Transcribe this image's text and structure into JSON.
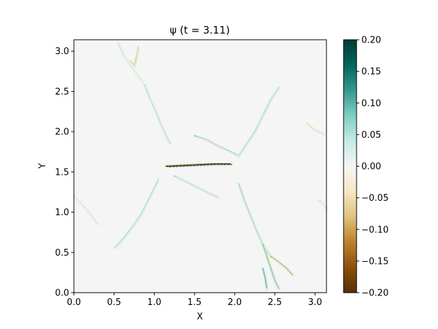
{
  "chart_data": {
    "type": "heatmap",
    "title": "ψ (t = 3.11)",
    "xlabel": "X",
    "ylabel": "Y",
    "xlim": [
      0.0,
      3.1416
    ],
    "ylim": [
      0.0,
      3.1416
    ],
    "x_ticks": [
      0.0,
      0.5,
      1.0,
      1.5,
      2.0,
      2.5,
      3.0
    ],
    "x_tick_labels": [
      "0.0",
      "0.5",
      "1.0",
      "1.5",
      "2.0",
      "2.5",
      "3.0"
    ],
    "y_ticks": [
      0.0,
      0.5,
      1.0,
      1.5,
      2.0,
      2.5,
      3.0
    ],
    "y_tick_labels": [
      "0.0",
      "0.5",
      "1.0",
      "1.5",
      "2.0",
      "2.5",
      "3.0"
    ],
    "colorbar": {
      "colormap": "BrBG",
      "vmin": -0.2,
      "vmax": 0.2,
      "ticks": [
        0.2,
        0.15,
        0.1,
        0.05,
        0.0,
        -0.05,
        -0.1,
        -0.15,
        -0.2
      ],
      "tick_labels": [
        "0.20",
        "0.15",
        "0.10",
        "0.05",
        "0.00",
        "−0.05",
        "−0.10",
        "−0.15",
        "−0.20"
      ],
      "stops": [
        "#543005",
        "#8c510a",
        "#bf812d",
        "#dfc27d",
        "#f6e8c3",
        "#f5f5f5",
        "#c7eae5",
        "#80cdc1",
        "#35978f",
        "#01665e",
        "#003c30"
      ]
    },
    "background_value": 0.0,
    "features": [
      {
        "kind": "filament",
        "points": [
          [
            0.55,
            3.1
          ],
          [
            0.62,
            2.95
          ],
          [
            0.72,
            2.8
          ],
          [
            0.82,
            2.67
          ],
          [
            0.88,
            2.58
          ]
        ],
        "amplitude": 0.04
      },
      {
        "kind": "filament",
        "points": [
          [
            0.88,
            2.58
          ],
          [
            0.95,
            2.4
          ],
          [
            1.02,
            2.25
          ],
          [
            1.08,
            2.1
          ],
          [
            1.15,
            1.95
          ],
          [
            1.2,
            1.85
          ]
        ],
        "amplitude": 0.05
      },
      {
        "kind": "filament",
        "points": [
          [
            0.7,
            2.88
          ],
          [
            0.75,
            2.82
          ],
          [
            0.78,
            2.95
          ],
          [
            0.8,
            3.05
          ]
        ],
        "amplitude": -0.06
      },
      {
        "kind": "filament",
        "points": [
          [
            1.5,
            1.95
          ],
          [
            1.65,
            1.9
          ],
          [
            1.8,
            1.82
          ],
          [
            1.95,
            1.75
          ],
          [
            2.05,
            1.7
          ]
        ],
        "amplitude": 0.07
      },
      {
        "kind": "filament",
        "points": [
          [
            1.15,
            1.57
          ],
          [
            1.35,
            1.58
          ],
          [
            1.55,
            1.59
          ],
          [
            1.75,
            1.6
          ],
          [
            1.95,
            1.6
          ]
        ],
        "amplitude": -0.2
      },
      {
        "kind": "filament",
        "points": [
          [
            1.25,
            1.45
          ],
          [
            1.45,
            1.35
          ],
          [
            1.65,
            1.25
          ],
          [
            1.8,
            1.18
          ]
        ],
        "amplitude": 0.06
      },
      {
        "kind": "filament",
        "points": [
          [
            2.05,
            1.7
          ],
          [
            2.15,
            1.85
          ],
          [
            2.25,
            2.0
          ],
          [
            2.35,
            2.2
          ],
          [
            2.45,
            2.4
          ],
          [
            2.55,
            2.55
          ]
        ],
        "amplitude": 0.05
      },
      {
        "kind": "filament",
        "points": [
          [
            2.9,
            2.1
          ],
          [
            3.0,
            2.02
          ],
          [
            3.1,
            1.97
          ]
        ],
        "amplitude": -0.05
      },
      {
        "kind": "filament",
        "points": [
          [
            1.05,
            1.4
          ],
          [
            0.95,
            1.2
          ],
          [
            0.85,
            1.0
          ],
          [
            0.75,
            0.85
          ],
          [
            0.62,
            0.68
          ],
          [
            0.5,
            0.55
          ]
        ],
        "amplitude": 0.05
      },
      {
        "kind": "filament",
        "points": [
          [
            0.0,
            1.2
          ],
          [
            0.1,
            1.1
          ],
          [
            0.2,
            0.98
          ],
          [
            0.3,
            0.85
          ]
        ],
        "amplitude": 0.04
      },
      {
        "kind": "filament",
        "points": [
          [
            2.05,
            1.35
          ],
          [
            2.12,
            1.15
          ],
          [
            2.2,
            0.95
          ],
          [
            2.28,
            0.75
          ],
          [
            2.35,
            0.6
          ],
          [
            2.45,
            0.45
          ]
        ],
        "amplitude": 0.06
      },
      {
        "kind": "filament",
        "points": [
          [
            2.35,
            0.6
          ],
          [
            2.4,
            0.45
          ],
          [
            2.45,
            0.3
          ],
          [
            2.5,
            0.15
          ],
          [
            2.55,
            0.05
          ]
        ],
        "amplitude": 0.08
      },
      {
        "kind": "filament",
        "points": [
          [
            2.45,
            0.45
          ],
          [
            2.55,
            0.38
          ],
          [
            2.65,
            0.3
          ],
          [
            2.72,
            0.22
          ]
        ],
        "amplitude": -0.09
      },
      {
        "kind": "filament",
        "points": [
          [
            2.35,
            0.3
          ],
          [
            2.38,
            0.18
          ],
          [
            2.4,
            0.05
          ]
        ],
        "amplitude": 0.09
      },
      {
        "kind": "filament",
        "points": [
          [
            3.05,
            1.15
          ],
          [
            3.1,
            1.1
          ],
          [
            3.14,
            1.05
          ]
        ],
        "amplitude": 0.04
      }
    ]
  }
}
